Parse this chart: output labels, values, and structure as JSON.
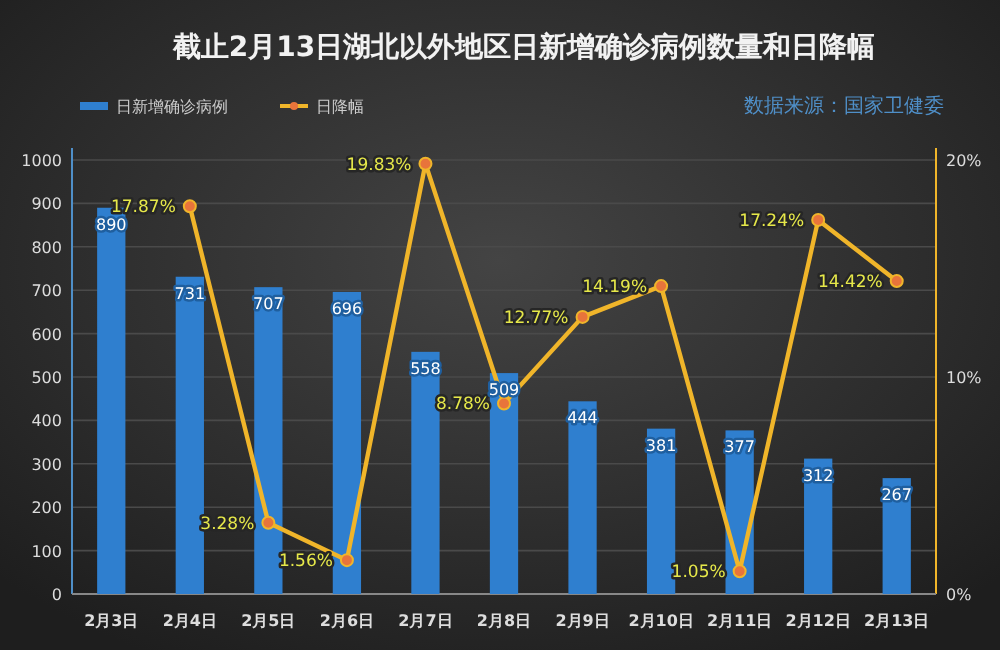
{
  "chart_data": {
    "type": "bar",
    "title": "截止2月13日湖北以外地区日新增确诊病例数量和日降幅",
    "annotations": [
      "数据来源：国家卫健委"
    ],
    "categories": [
      "2月3日",
      "2月4日",
      "2月5日",
      "2月6日",
      "2月7日",
      "2月8日",
      "2月9日",
      "2月10日",
      "2月11日",
      "2月12日",
      "2月13日"
    ],
    "series": [
      {
        "name": "日新增确诊病例",
        "color": "#2f7fcf",
        "values": [
          890,
          731,
          707,
          696,
          558,
          509,
          444,
          381,
          377,
          312,
          267
        ],
        "value_labels": [
          "890",
          "731",
          "707",
          "696",
          "558",
          "509",
          "444",
          "381",
          "377",
          "312",
          "267"
        ]
      },
      {
        "name": "日降幅",
        "type": "line",
        "axis": "y2",
        "color": "#f0b52a",
        "values": [
          null,
          17.87,
          3.28,
          1.56,
          19.83,
          8.78,
          12.77,
          14.19,
          1.05,
          17.24,
          14.42
        ],
        "value_labels": [
          null,
          "17.87%",
          "3.28%",
          "1.56%",
          "19.83%",
          "8.78%",
          "12.77%",
          "14.19%",
          "1.05%",
          "17.24%",
          "14.42%"
        ]
      }
    ],
    "ylim": [
      0,
      1000
    ],
    "yticks": [
      0,
      100,
      200,
      300,
      400,
      500,
      600,
      700,
      800,
      900,
      1000
    ],
    "y2lim": [
      0,
      20
    ],
    "y2ticks": [
      {
        "value": 0,
        "label": "0%"
      },
      {
        "value": 10,
        "label": "10%"
      },
      {
        "value": 20,
        "label": "20%"
      }
    ],
    "grid": "y",
    "legend": "top left",
    "marker": "circle",
    "line_style": "solid"
  }
}
